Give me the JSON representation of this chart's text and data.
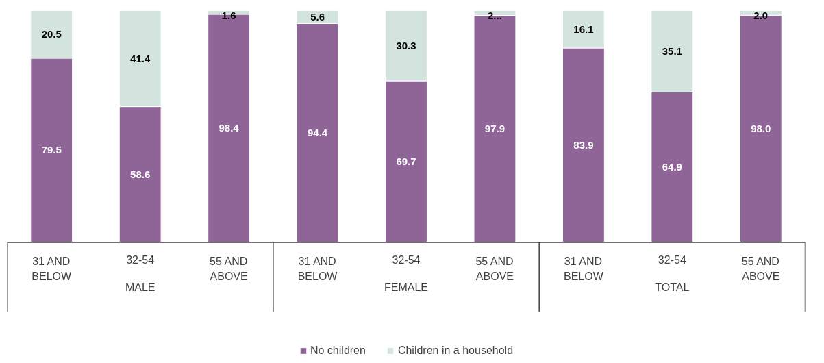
{
  "chart_data": {
    "type": "bar",
    "stacked": true,
    "categories": [
      "31 AND BELOW",
      "32-54",
      "55 AND ABOVE",
      "31 AND BELOW",
      "32-54",
      "55 AND ABOVE",
      "31 AND BELOW",
      "32-54",
      "55 AND ABOVE"
    ],
    "series": [
      {
        "name": "No children",
        "color": "#8e6596",
        "values": [
          79.5,
          58.6,
          98.4,
          94.4,
          69.7,
          97.9,
          83.9,
          64.9,
          98.0
        ],
        "value_labels": [
          "79.5",
          "58.6",
          "98.4",
          "94.4",
          "69.7",
          "97.9",
          "83.9",
          "64.9",
          "98.0"
        ]
      },
      {
        "name": "Children in a household",
        "color": "#d3e3de",
        "values": [
          20.5,
          41.4,
          1.6,
          5.6,
          30.3,
          2.1,
          16.1,
          35.1,
          2.0
        ],
        "value_labels": [
          "20.5",
          "41.4",
          "1.6",
          "5.6",
          "30.3",
          "2...",
          "16.1",
          "35.1",
          "2.0"
        ]
      }
    ],
    "ylim": [
      0,
      100
    ],
    "tick_labels": "x",
    "grid": false,
    "legend": "bottom",
    "annotations": [
      "MALE",
      "FEMALE",
      "TOTAL"
    ]
  }
}
